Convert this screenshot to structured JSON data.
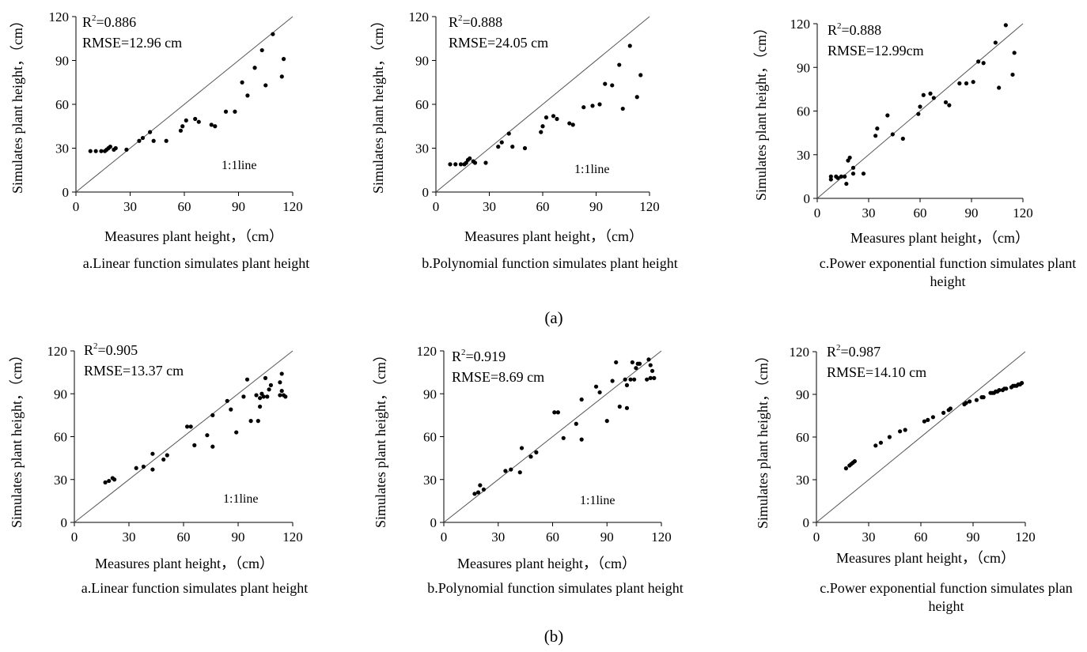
{
  "rows": [
    {
      "label": "(a)",
      "charts": [
        {
          "caption": [
            "a.Linear function simulates plant height"
          ],
          "r2_prefix": "R",
          "r2_sup": "2",
          "r2_value": "=0.886",
          "rmse": "RMSE=12.96 cm",
          "line_label": "1:1line",
          "xlabel": "Measures plant height，（cm）",
          "ylabel": "Simulates plant height，（cm）"
        },
        {
          "caption": [
            "b.Polynomial function simulates plant height"
          ],
          "r2_prefix": "R",
          "r2_sup": "2",
          "r2_value": "=0.888",
          "rmse": "RMSE=24.05 cm",
          "line_label": "1:1line",
          "xlabel": "Measures plant height，（cm）",
          "ylabel": "Simulates plant height，（cm）"
        },
        {
          "caption": [
            "c.Power exponential function simulates plant",
            "height"
          ],
          "r2_prefix": "R",
          "r2_sup": "2",
          "r2_value": "=0.888",
          "rmse": "RMSE=12.99cm",
          "line_label": "",
          "xlabel": "Measures plant height，（cm）",
          "ylabel": "Simulates plant height，（cm）"
        }
      ]
    },
    {
      "label": "(b)",
      "charts": [
        {
          "caption": [
            "a.Linear function simulates plant height"
          ],
          "r2_prefix": "R",
          "r2_sup": "2",
          "r2_value": "=0.905",
          "rmse": "RMSE=13.37 cm",
          "line_label": "1:1line",
          "xlabel": "Measures plant height，（cm）",
          "ylabel": "Simulates plant height，（cm）"
        },
        {
          "caption": [
            "b.Polynomial function simulates plant height"
          ],
          "r2_prefix": "R",
          "r2_sup": "2",
          "r2_value": "=0.919",
          "rmse": "RMSE=8.69 cm",
          "line_label": "1:1line",
          "xlabel": "Measures plant height，（cm）",
          "ylabel": "Simulates plant height，（cm）"
        },
        {
          "caption": [
            "c.Power exponential function simulates plan",
            "height"
          ],
          "r2_prefix": "R",
          "r2_sup": "2",
          "r2_value": "=0.987",
          "rmse": "RMSE=14.10 cm",
          "line_label": "",
          "xlabel": "Measures plant height，（cm）",
          "ylabel": "Simulates plant height，（cm）"
        }
      ]
    }
  ],
  "chart_data": [
    {
      "id": "a-linear",
      "type": "scatter",
      "xlim": [
        0,
        120
      ],
      "ylim": [
        0,
        120
      ],
      "xticks": [
        0,
        30,
        60,
        90,
        120
      ],
      "yticks": [
        0,
        30,
        60,
        90,
        120
      ],
      "reference_line": "1:1",
      "points": [
        [
          8,
          28
        ],
        [
          11,
          28
        ],
        [
          14,
          28
        ],
        [
          16,
          28
        ],
        [
          17,
          29
        ],
        [
          18,
          30
        ],
        [
          19,
          31
        ],
        [
          21,
          29
        ],
        [
          22,
          30
        ],
        [
          28,
          29
        ],
        [
          35,
          35
        ],
        [
          37,
          37
        ],
        [
          41,
          41
        ],
        [
          43,
          35
        ],
        [
          50,
          35
        ],
        [
          58,
          42
        ],
        [
          59,
          45
        ],
        [
          61,
          49
        ],
        [
          66,
          50
        ],
        [
          68,
          48
        ],
        [
          75,
          46
        ],
        [
          77,
          45
        ],
        [
          83,
          55
        ],
        [
          88,
          55
        ],
        [
          92,
          75
        ],
        [
          95,
          66
        ],
        [
          99,
          85
        ],
        [
          103,
          97
        ],
        [
          105,
          73
        ],
        [
          109,
          108
        ],
        [
          114,
          79
        ],
        [
          115,
          91
        ]
      ]
    },
    {
      "id": "a-polynomial",
      "type": "scatter",
      "xlim": [
        0,
        120
      ],
      "ylim": [
        0,
        120
      ],
      "xticks": [
        0,
        30,
        60,
        90,
        120
      ],
      "yticks": [
        0,
        30,
        60,
        90,
        120
      ],
      "reference_line": "1:1",
      "points": [
        [
          8,
          19
        ],
        [
          11,
          19
        ],
        [
          14,
          19
        ],
        [
          16,
          19
        ],
        [
          17,
          20
        ],
        [
          18,
          22
        ],
        [
          19,
          23
        ],
        [
          21,
          21
        ],
        [
          22,
          20
        ],
        [
          28,
          20
        ],
        [
          35,
          31
        ],
        [
          37,
          34
        ],
        [
          41,
          40
        ],
        [
          43,
          31
        ],
        [
          50,
          30
        ],
        [
          59,
          41
        ],
        [
          60,
          45
        ],
        [
          62,
          51
        ],
        [
          66,
          52
        ],
        [
          68,
          50
        ],
        [
          75,
          47
        ],
        [
          77,
          46
        ],
        [
          83,
          58
        ],
        [
          88,
          59
        ],
        [
          92,
          60
        ],
        [
          95,
          74
        ],
        [
          99,
          73
        ],
        [
          103,
          87
        ],
        [
          105,
          57
        ],
        [
          109,
          100
        ],
        [
          113,
          65
        ],
        [
          115,
          80
        ]
      ]
    },
    {
      "id": "a-power",
      "type": "scatter",
      "xlim": [
        0,
        120
      ],
      "ylim": [
        0,
        120
      ],
      "xticks": [
        0,
        30,
        60,
        90,
        120
      ],
      "yticks": [
        0,
        30,
        60,
        90,
        120
      ],
      "reference_line": "1:1",
      "points": [
        [
          8,
          13
        ],
        [
          8,
          15
        ],
        [
          11,
          15
        ],
        [
          12,
          14
        ],
        [
          14,
          15
        ],
        [
          16,
          15
        ],
        [
          17,
          10
        ],
        [
          18,
          26
        ],
        [
          19,
          28
        ],
        [
          21,
          21
        ],
        [
          21,
          17
        ],
        [
          27,
          17
        ],
        [
          34,
          43
        ],
        [
          35,
          48
        ],
        [
          41,
          57
        ],
        [
          44,
          44
        ],
        [
          50,
          41
        ],
        [
          59,
          58
        ],
        [
          60,
          63
        ],
        [
          62,
          71
        ],
        [
          66,
          72
        ],
        [
          68,
          69
        ],
        [
          75,
          66
        ],
        [
          77,
          64
        ],
        [
          83,
          79
        ],
        [
          87,
          79
        ],
        [
          91,
          80
        ],
        [
          94,
          94
        ],
        [
          97,
          93
        ],
        [
          104,
          107
        ],
        [
          106,
          76
        ],
        [
          110,
          119
        ],
        [
          114,
          85
        ],
        [
          115,
          100
        ]
      ]
    },
    {
      "id": "b-linear",
      "type": "scatter",
      "xlim": [
        0,
        120
      ],
      "ylim": [
        0,
        120
      ],
      "xticks": [
        0,
        30,
        60,
        90,
        120
      ],
      "yticks": [
        0,
        30,
        60,
        90,
        120
      ],
      "reference_line": "1:1",
      "points": [
        [
          17,
          28
        ],
        [
          19,
          29
        ],
        [
          21,
          31
        ],
        [
          22,
          30
        ],
        [
          34,
          38
        ],
        [
          38,
          39
        ],
        [
          43,
          48
        ],
        [
          43,
          37
        ],
        [
          49,
          44
        ],
        [
          51,
          47
        ],
        [
          62,
          67
        ],
        [
          64,
          67
        ],
        [
          66,
          54
        ],
        [
          73,
          61
        ],
        [
          76,
          53
        ],
        [
          76,
          75
        ],
        [
          84,
          85
        ],
        [
          86,
          79
        ],
        [
          89,
          63
        ],
        [
          93,
          88
        ],
        [
          95,
          100
        ],
        [
          97,
          71
        ],
        [
          100,
          89
        ],
        [
          101,
          71
        ],
        [
          102,
          87
        ],
        [
          102,
          81
        ],
        [
          103,
          90
        ],
        [
          104,
          88
        ],
        [
          105,
          101
        ],
        [
          106,
          88
        ],
        [
          107,
          93
        ],
        [
          108,
          96
        ],
        [
          113,
          89
        ],
        [
          113,
          98
        ],
        [
          114,
          104
        ],
        [
          114,
          92
        ],
        [
          115,
          89
        ],
        [
          116,
          88
        ]
      ]
    },
    {
      "id": "b-polynomial",
      "type": "scatter",
      "xlim": [
        0,
        120
      ],
      "ylim": [
        0,
        120
      ],
      "xticks": [
        0,
        30,
        60,
        90,
        120
      ],
      "yticks": [
        0,
        30,
        60,
        90,
        120
      ],
      "reference_line": "1:1",
      "points": [
        [
          17,
          20
        ],
        [
          19,
          21
        ],
        [
          20,
          26
        ],
        [
          22,
          23
        ],
        [
          34,
          36
        ],
        [
          37,
          37
        ],
        [
          42,
          35
        ],
        [
          43,
          52
        ],
        [
          48,
          46
        ],
        [
          51,
          49
        ],
        [
          61,
          77
        ],
        [
          63,
          77
        ],
        [
          66,
          59
        ],
        [
          73,
          69
        ],
        [
          76,
          58
        ],
        [
          76,
          86
        ],
        [
          84,
          95
        ],
        [
          86,
          91
        ],
        [
          90,
          71
        ],
        [
          93,
          99
        ],
        [
          95,
          112
        ],
        [
          97,
          81
        ],
        [
          100,
          100
        ],
        [
          101,
          80
        ],
        [
          101,
          96
        ],
        [
          103,
          100
        ],
        [
          104,
          112
        ],
        [
          105,
          100
        ],
        [
          106,
          108
        ],
        [
          107,
          111
        ],
        [
          108,
          111
        ],
        [
          112,
          100
        ],
        [
          113,
          114
        ],
        [
          114,
          101
        ],
        [
          114,
          110
        ],
        [
          115,
          106
        ],
        [
          116,
          101
        ]
      ]
    },
    {
      "id": "b-power",
      "type": "scatter",
      "xlim": [
        0,
        120
      ],
      "ylim": [
        0,
        120
      ],
      "xticks": [
        0,
        30,
        60,
        90,
        120
      ],
      "yticks": [
        0,
        30,
        60,
        90,
        120
      ],
      "reference_line": "1:1",
      "points": [
        [
          17,
          38
        ],
        [
          19,
          40
        ],
        [
          20,
          41
        ],
        [
          21,
          42
        ],
        [
          22,
          43
        ],
        [
          34,
          54
        ],
        [
          37,
          56
        ],
        [
          42,
          60
        ],
        [
          48,
          64
        ],
        [
          51,
          65
        ],
        [
          62,
          71
        ],
        [
          64,
          72
        ],
        [
          67,
          74
        ],
        [
          73,
          77
        ],
        [
          76,
          79
        ],
        [
          77,
          80
        ],
        [
          85,
          83
        ],
        [
          86,
          84
        ],
        [
          88,
          85
        ],
        [
          92,
          86
        ],
        [
          95,
          88
        ],
        [
          96,
          88
        ],
        [
          100,
          91
        ],
        [
          101,
          91
        ],
        [
          102,
          91
        ],
        [
          103,
          92
        ],
        [
          104,
          92
        ],
        [
          105,
          93
        ],
        [
          107,
          93
        ],
        [
          108,
          94
        ],
        [
          109,
          94
        ],
        [
          112,
          95
        ],
        [
          113,
          96
        ],
        [
          114,
          96
        ],
        [
          115,
          96
        ],
        [
          116,
          97
        ],
        [
          117,
          97
        ],
        [
          118,
          98
        ]
      ]
    }
  ]
}
